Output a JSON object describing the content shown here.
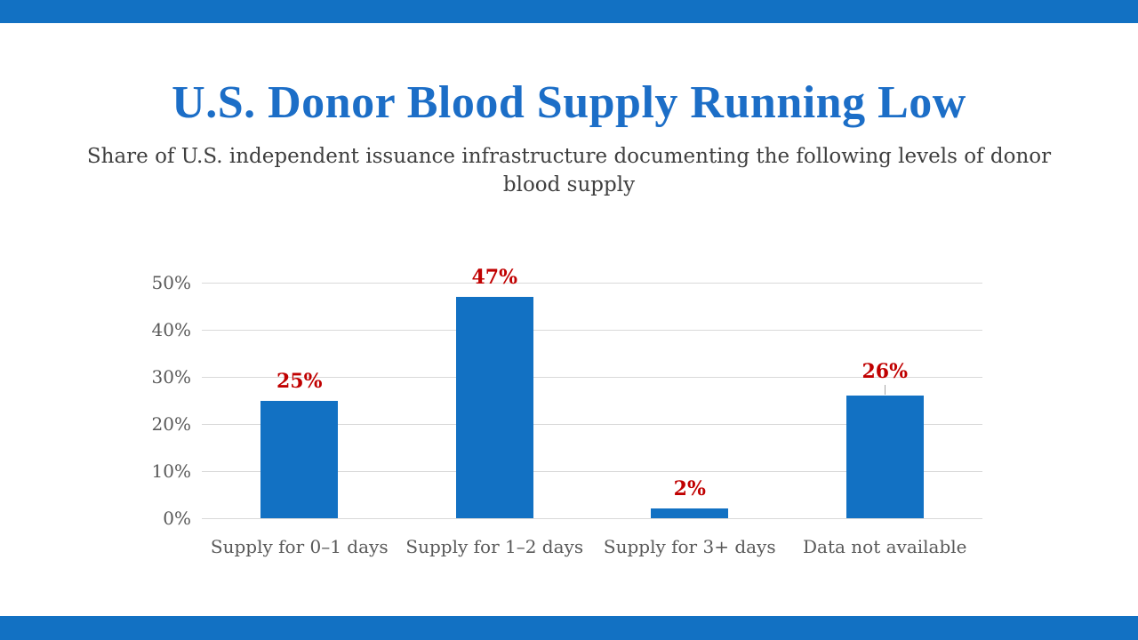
{
  "page": {
    "background": "#FFFFFF",
    "band_color": "#1271C3"
  },
  "header": {
    "title": "U.S. Donor Blood Supply Running Low",
    "title_color": "#1C6EC7",
    "subtitle": "Share of U.S. independent issuance infrastructure documenting the following levels of donor blood supply",
    "subtitle_color": "#3F3F3F"
  },
  "chart_data": {
    "type": "bar",
    "title": "U.S. Donor Blood Supply Running Low",
    "subtitle": "Share of U.S. independent issuance infrastructure documenting the following levels of donor blood supply",
    "categories": [
      "Supply for 0–1 days",
      "Supply for 1–2 days",
      "Supply for 3+ days",
      "Data not available"
    ],
    "values": [
      25,
      47,
      2,
      26
    ],
    "data_labels": [
      "25%",
      "47%",
      "2%",
      "26%"
    ],
    "data_label_has_leader_line": [
      false,
      false,
      false,
      true
    ],
    "yticks": [
      0,
      10,
      20,
      30,
      40,
      50
    ],
    "ytick_labels": [
      "0%",
      "10%",
      "20%",
      "30%",
      "40%",
      "50%"
    ],
    "ylim": [
      0,
      50
    ],
    "xlabel": "",
    "ylabel": "",
    "grid": true,
    "legend": false,
    "bar_color": "#1271C3",
    "data_label_color": "#C00000",
    "axis_text_color": "#595959",
    "gridline_color": "#D9D9D9",
    "leader_line_color": "#A6A6A6"
  }
}
